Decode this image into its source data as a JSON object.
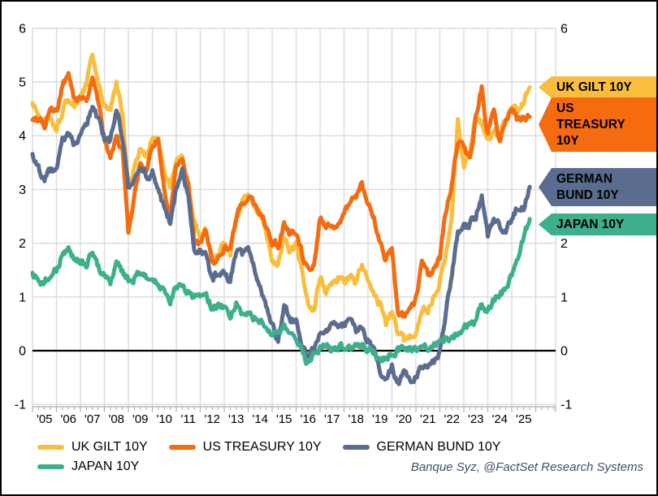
{
  "frame": {
    "background": "#FFFFFF",
    "border_color": "#000000"
  },
  "source_note": {
    "text": "Banque Syz, @FactSet Research Systems",
    "color": "#3E5063"
  },
  "chart_data": {
    "type": "line",
    "title": "",
    "x_start": 2005.0,
    "x_step_years": 0.25,
    "ylim": [
      -1,
      6
    ],
    "yticks": [
      6,
      5,
      4,
      3,
      2,
      1,
      0,
      -1
    ],
    "ytick_labels_left": [
      "6",
      "5",
      "4",
      "3",
      "2",
      "1",
      "0",
      "-1"
    ],
    "ytick_labels_right": [
      "6",
      "5",
      "4",
      "3",
      "2",
      "1",
      "0",
      "-1"
    ],
    "xtick_labels": [
      "'05",
      "'06",
      "'07",
      "'08",
      "'09",
      "'10",
      "'11",
      "'12",
      "'13",
      "'14",
      "'15",
      "'16",
      "'17",
      "'18",
      "'19",
      "'20",
      "'21",
      "'22",
      "'23",
      "'24",
      "'25"
    ],
    "grid": true,
    "grid_color": "#DADADA",
    "tick_color": "#AFAFAF",
    "zero_line_color": "#000000",
    "legend_position": "bottom",
    "series": [
      {
        "name": "UK GILT 10Y",
        "color": "#FBBD3C",
        "values": [
          4.6,
          4.4,
          4.25,
          4.3,
          4.1,
          4.45,
          4.7,
          4.55,
          4.75,
          4.95,
          5.5,
          4.95,
          4.55,
          4.45,
          5.0,
          4.45,
          3.1,
          3.35,
          3.75,
          3.6,
          4.0,
          3.9,
          3.35,
          3.05,
          3.55,
          3.65,
          3.1,
          2.4,
          2.05,
          2.2,
          1.65,
          1.75,
          2.0,
          1.8,
          2.45,
          2.75,
          2.95,
          2.65,
          2.55,
          2.2,
          1.75,
          1.6,
          2.1,
          1.85,
          1.95,
          1.45,
          0.85,
          0.75,
          1.4,
          1.1,
          1.25,
          1.35,
          1.25,
          1.4,
          1.3,
          1.55,
          1.3,
          1.0,
          0.85,
          0.5,
          0.75,
          0.35,
          0.2,
          0.25,
          0.35,
          0.8,
          0.75,
          1.0,
          1.3,
          1.8,
          2.6,
          4.3,
          3.4,
          3.75,
          4.45,
          4.25,
          3.9,
          4.1,
          4.0,
          4.35,
          4.6,
          4.5,
          4.65,
          4.9
        ]
      },
      {
        "name": "US TREASURY 10Y",
        "color": "#F56B0F",
        "values": [
          4.25,
          4.3,
          4.2,
          4.45,
          4.4,
          4.95,
          5.1,
          4.65,
          4.7,
          4.7,
          5.1,
          4.55,
          3.95,
          3.55,
          3.95,
          3.7,
          2.25,
          2.85,
          3.55,
          3.4,
          3.8,
          3.9,
          3.0,
          2.55,
          3.4,
          3.5,
          3.1,
          2.0,
          2.0,
          2.2,
          1.6,
          1.7,
          1.9,
          1.85,
          2.5,
          2.75,
          2.9,
          2.7,
          2.55,
          2.35,
          2.05,
          1.95,
          2.35,
          2.15,
          2.2,
          1.8,
          1.5,
          1.65,
          2.45,
          2.35,
          2.25,
          2.35,
          2.5,
          2.8,
          2.9,
          3.1,
          2.7,
          2.5,
          2.0,
          1.7,
          1.9,
          0.7,
          0.65,
          0.75,
          0.95,
          1.7,
          1.45,
          1.5,
          1.75,
          2.6,
          3.1,
          3.95,
          3.85,
          3.5,
          4.3,
          4.95,
          4.0,
          4.5,
          3.9,
          4.3,
          4.55,
          4.25,
          4.35,
          4.35
        ]
      },
      {
        "name": "GERMAN BUND 10Y",
        "color": "#5A6C8F",
        "values": [
          3.65,
          3.4,
          3.2,
          3.35,
          3.35,
          3.9,
          4.05,
          3.8,
          4.05,
          4.25,
          4.55,
          4.3,
          3.95,
          3.9,
          4.5,
          4.0,
          3.0,
          3.15,
          3.4,
          3.25,
          3.35,
          3.05,
          2.6,
          2.35,
          3.05,
          3.3,
          2.9,
          1.85,
          1.85,
          1.75,
          1.3,
          1.45,
          1.5,
          1.3,
          1.85,
          1.8,
          1.95,
          1.5,
          1.2,
          0.85,
          0.5,
          0.2,
          0.85,
          0.6,
          0.55,
          0.15,
          -0.1,
          0.05,
          0.3,
          0.35,
          0.5,
          0.4,
          0.5,
          0.6,
          0.35,
          0.45,
          0.2,
          0.0,
          -0.4,
          -0.55,
          -0.3,
          -0.65,
          -0.45,
          -0.55,
          -0.5,
          -0.25,
          -0.25,
          -0.2,
          -0.05,
          0.75,
          1.4,
          2.2,
          2.3,
          2.35,
          2.5,
          2.9,
          2.15,
          2.45,
          2.3,
          2.25,
          2.45,
          2.7,
          2.65,
          3.05
        ]
      },
      {
        "name": "JAPAN 10Y",
        "color": "#3CAF8C",
        "values": [
          1.4,
          1.3,
          1.25,
          1.45,
          1.5,
          1.8,
          1.9,
          1.7,
          1.7,
          1.6,
          1.85,
          1.55,
          1.4,
          1.3,
          1.6,
          1.45,
          1.3,
          1.35,
          1.45,
          1.35,
          1.35,
          1.3,
          1.05,
          0.95,
          1.15,
          1.2,
          1.05,
          1.0,
          0.95,
          1.0,
          0.8,
          0.8,
          0.8,
          0.6,
          0.85,
          0.65,
          0.7,
          0.6,
          0.55,
          0.45,
          0.3,
          0.4,
          0.45,
          0.3,
          0.2,
          -0.05,
          -0.25,
          -0.05,
          0.05,
          0.05,
          0.05,
          0.05,
          0.05,
          0.05,
          0.1,
          0.1,
          0.0,
          -0.05,
          -0.2,
          -0.15,
          -0.05,
          0.0,
          0.0,
          0.05,
          0.05,
          0.1,
          0.05,
          0.1,
          0.15,
          0.25,
          0.25,
          0.35,
          0.45,
          0.45,
          0.6,
          0.85,
          0.7,
          0.95,
          1.05,
          1.1,
          1.4,
          1.75,
          2.1,
          2.45
        ]
      }
    ],
    "right_flags": [
      {
        "text": "UK GILT 10Y",
        "color": "#FBBD3C",
        "value": 4.9,
        "lines": 1
      },
      {
        "text": "US\nTREASURY\n10Y",
        "color": "#F56B0F",
        "value": 4.2,
        "lines": 3
      },
      {
        "text": "GERMAN\nBUND 10Y",
        "color": "#5A6C8F",
        "value": 3.05,
        "lines": 2
      },
      {
        "text": "JAPAN 10Y",
        "color": "#3CAF8C",
        "value": 2.35,
        "lines": 1
      }
    ]
  },
  "legend_rows": [
    [
      0,
      1,
      2
    ],
    [
      3
    ]
  ]
}
